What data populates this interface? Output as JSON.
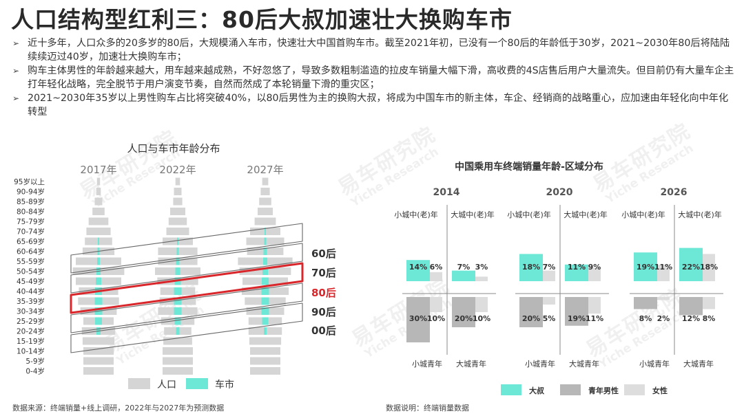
{
  "title": "人口结构型红利三：80后大叔加速壮大换购车市",
  "bullets": [
    "近十多年，人口众多的20多岁的80后，大规模涌入车市，快速壮大中国首购车市。截至2021年初，已没有一个80后的年龄低于30岁，2021~2030年80后将陆陆续续迈过40岁，加速壮大换购车市；",
    "购车主体男性的年龄越来越大，用车越来越成熟，不好忽悠了，导致多数粗制滥造的拉皮车销量大幅下滑，高收费的4S店售后用户大量流失。但目前仍有大量车企主打年轻化战略，完全脱节于用户演变节奏，自然而然成了本轮销量下滑的重灾区；",
    "2021~2030年35岁以上男性购车占比将突破40%，以80后男性为主的换购大叔，将成为中国车市的新主体，车企、经销商的战略重心，应加速由年轻化向中年化转型"
  ],
  "watermark": {
    "cn": "易车研究院",
    "en": "Yiche Research"
  },
  "footer_left": "数据来源：终端销量+线上调研，2022年与2027年为预测数据",
  "footer_right": "数据说明：终端销量数据",
  "colors": {
    "uncle": "#6ee8d6",
    "young": "#b7b7b7",
    "female": "#dddddd",
    "population": "#d5d5d5",
    "highlight": "#d9262b"
  },
  "chart_data": [
    {
      "type": "bar",
      "title": "人口与车市年龄分布",
      "columns": [
        "2017年",
        "2022年",
        "2027年"
      ],
      "categories": [
        "95岁以上",
        "90-94岁",
        "85-89岁",
        "80-84岁",
        "75-79岁",
        "70-74岁",
        "65-69岁",
        "60-64岁",
        "55-59岁",
        "50-54岁",
        "45-49岁",
        "40-44岁",
        "35-39岁",
        "30-34岁",
        "25-29岁",
        "20-24岁",
        "15-19岁",
        "10-14岁",
        "5-9岁",
        "0-4岁"
      ],
      "legend": [
        "人口",
        "车市"
      ],
      "generation_labels": [
        "60后",
        "70后",
        "80后",
        "90后",
        "00后"
      ],
      "highlight_generation": "80后"
    },
    {
      "type": "bar",
      "title": "中国乘用车终端销量年龄-区域分布",
      "quadrant_labels": {
        "top_left": "小城中(老)年",
        "top_right": "大城中(老)年",
        "bottom_left": "小城青年",
        "bottom_right": "大城青年"
      },
      "legend": [
        "大叔",
        "青年男性",
        "女性"
      ],
      "panels": [
        {
          "year": "2014",
          "小城中(老)年": {
            "male": 14,
            "female": 6
          },
          "大城中(老)年": {
            "male": 7,
            "female": 3
          },
          "小城青年": {
            "male": 30,
            "female": 10
          },
          "大城青年": {
            "male": 20,
            "female": 10
          }
        },
        {
          "year": "2020",
          "小城中(老)年": {
            "male": 18,
            "female": 7
          },
          "大城中(老)年": {
            "male": 11,
            "female": 9
          },
          "小城青年": {
            "male": 20,
            "female": 5
          },
          "大城青年": {
            "male": 19,
            "female": 11
          }
        },
        {
          "year": "2026",
          "小城中(老)年": {
            "male": 19,
            "female": 11
          },
          "大城中(老)年": {
            "male": 22,
            "female": 18
          },
          "小城青年": {
            "male": 8,
            "female": 2
          },
          "大城青年": {
            "male": 12,
            "female": 8
          }
        }
      ]
    }
  ]
}
